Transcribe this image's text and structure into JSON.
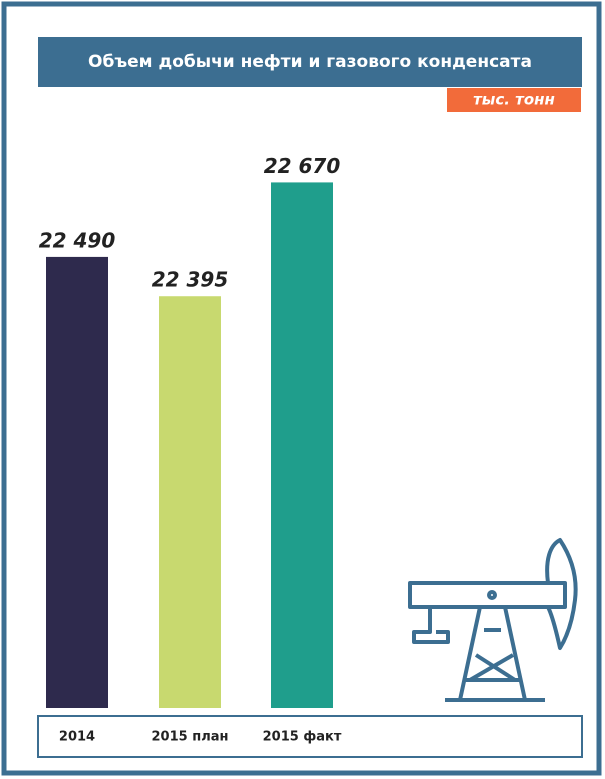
{
  "chart_data": {
    "type": "bar",
    "title": "Объем добычи нефти и газового конденсата",
    "subtitle": "тыс. тонн",
    "categories": [
      "2014",
      "2015 план",
      "2015 факт"
    ],
    "values": [
      22490,
      22395,
      22670
    ],
    "value_labels": [
      "22 490",
      "22 395",
      "22 670"
    ],
    "colors": [
      "#2e2a4d",
      "#c8d96f",
      "#1f9e8c"
    ],
    "ylim": [
      21400,
      22700
    ]
  }
}
